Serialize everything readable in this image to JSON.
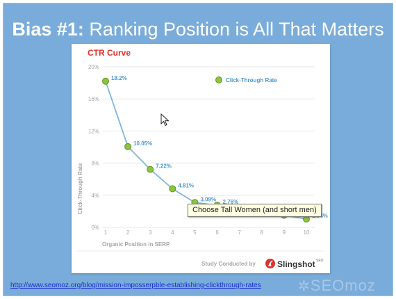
{
  "slide": {
    "title_bold": "Bias #1:",
    "title_rest": " Ranking Position is All That Matters",
    "source_link": "http://www.seomoz.org/blog/mission-imposserpble-establishing-clickthrough-rates",
    "logo_text": "SEOmoz"
  },
  "tooltip": {
    "text": "Choose Tall Women (and short men)"
  },
  "chart_data": {
    "type": "line",
    "title": "CTR Curve",
    "xlabel": "Organic Position in SERP",
    "ylabel": "Click-Through Rate",
    "footer_text": "Study Conducted by",
    "brand": "Slingshot",
    "brand_suffix": "SEO",
    "legend": {
      "position": "top-right"
    },
    "ylim": [
      0,
      20
    ],
    "yticks": [
      "0%",
      "4%",
      "8%",
      "12%",
      "16%",
      "20%"
    ],
    "x": [
      1,
      2,
      3,
      4,
      5,
      6,
      7,
      8,
      9,
      10
    ],
    "xticks": [
      "1",
      "2",
      "3",
      "4",
      "5",
      "6",
      "7",
      "8",
      "9",
      "10"
    ],
    "series": [
      {
        "name": "Click-Through Rate",
        "values": [
          18.2,
          10.05,
          7.22,
          4.81,
          3.09,
          2.76,
          1.88,
          1.75,
          1.52,
          1.04
        ],
        "labels": [
          "18.2%",
          "10.05%",
          "7.22%",
          "4.81%",
          "3.09%",
          "2.76%",
          "1.88%",
          "1.75%",
          "1.52%",
          "1.04%"
        ]
      }
    ],
    "colors": {
      "line": "#7fb6e0",
      "marker": "#8cc43c",
      "marker_edge": "#5e9426",
      "label": "#4a97cf",
      "title": "#e0312b",
      "axis_text": "#a5a5a5",
      "grid": "#e6e6e6"
    }
  }
}
